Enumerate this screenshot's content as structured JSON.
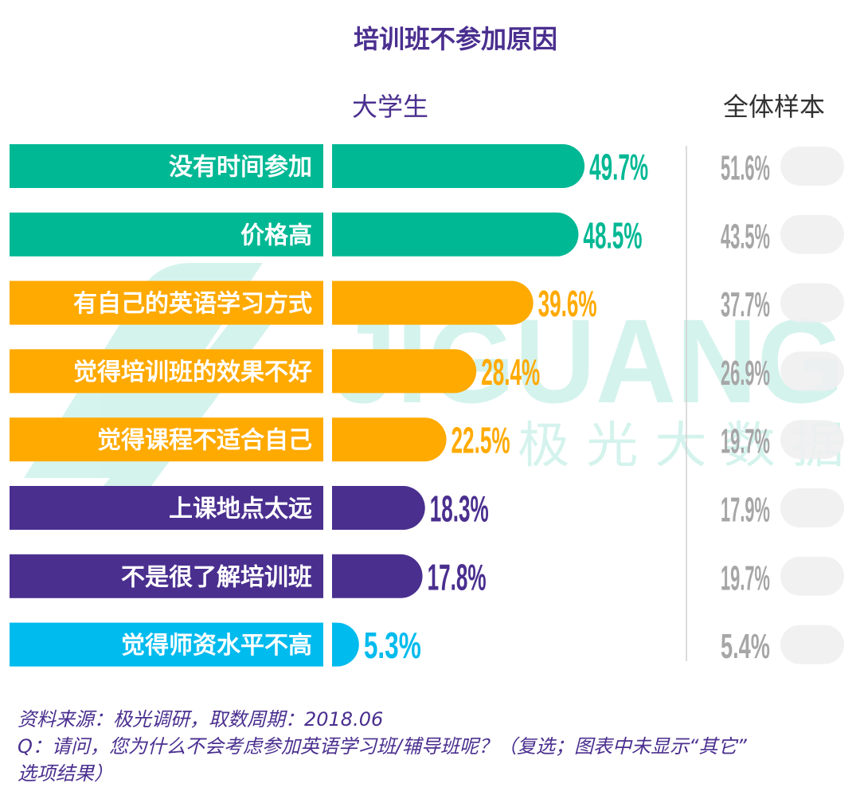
{
  "chart_data": {
    "type": "bar",
    "title": "培训班不参加原因",
    "series_labels": {
      "student": "大学生",
      "overall": "全体样本"
    },
    "categories": [
      "没有时间参加",
      "价格高",
      "有自己的英语学习方式",
      "觉得培训班的效果不好",
      "觉得课程不适合自己",
      "上课地点太远",
      "不是很了解培训班",
      "觉得师资水平不高"
    ],
    "series": [
      {
        "name": "大学生",
        "values": [
          49.7,
          48.5,
          39.6,
          28.4,
          22.5,
          18.3,
          17.8,
          5.3
        ]
      },
      {
        "name": "全体样本",
        "values": [
          51.6,
          43.5,
          37.7,
          26.9,
          19.7,
          17.9,
          19.7,
          5.4
        ]
      }
    ],
    "value_labels_student": [
      "49.7%",
      "48.5%",
      "39.6%",
      "28.4%",
      "22.5%",
      "18.3%",
      "17.8%",
      "5.3%"
    ],
    "value_labels_overall": [
      "51.6%",
      "43.5%",
      "37.7%",
      "26.9%",
      "19.7%",
      "17.9%",
      "19.7%",
      "5.4%"
    ],
    "row_colors": [
      "#00b894",
      "#00b894",
      "#ffaa00",
      "#ffaa00",
      "#ffaa00",
      "#4a2f8f",
      "#4a2f8f",
      "#00bbee"
    ],
    "overall_color": "#a6a6a6",
    "xlim": [
      0,
      60
    ]
  },
  "watermark": {
    "brand": "JIGUANG",
    "brand_cn": "极 光 大 数 据"
  },
  "footer": {
    "source": "资料来源：极光调研，取数周期：2018.06",
    "question_line1": "Q：请问，您为什么不会考虑参加英语学习班/辅导班呢？（复选；图表中未显示“其它”",
    "question_line2": "选项结果）"
  }
}
